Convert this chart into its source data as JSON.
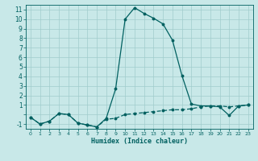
{
  "xlabel": "Humidex (Indice chaleur)",
  "xlim": [
    -0.5,
    23.5
  ],
  "ylim": [
    -1.5,
    11.5
  ],
  "xticks": [
    0,
    1,
    2,
    3,
    4,
    5,
    6,
    7,
    8,
    9,
    10,
    11,
    12,
    13,
    14,
    15,
    16,
    17,
    18,
    19,
    20,
    21,
    22,
    23
  ],
  "yticks": [
    -1,
    0,
    1,
    2,
    3,
    4,
    5,
    6,
    7,
    8,
    9,
    10,
    11
  ],
  "ytick_labels": [
    "-1",
    "",
    "1",
    "2",
    "3",
    "4",
    "5",
    "6",
    "7",
    "8",
    "9",
    "10",
    "11"
  ],
  "background_color": "#c8e8e8",
  "grid_color": "#a0cccc",
  "line_color": "#006060",
  "line1_x": [
    0,
    1,
    2,
    3,
    4,
    5,
    6,
    7,
    8,
    9,
    10,
    11,
    12,
    13,
    14,
    15,
    16,
    17,
    18,
    19,
    20,
    21,
    22,
    23
  ],
  "line1_y": [
    -0.3,
    -1.0,
    -0.7,
    0.1,
    0.0,
    -0.9,
    -1.1,
    -1.3,
    -0.4,
    2.7,
    10.0,
    11.2,
    10.6,
    10.1,
    9.5,
    7.8,
    4.1,
    1.1,
    0.9,
    0.9,
    0.8,
    -0.1,
    0.9,
    1.0
  ],
  "line2_x": [
    0,
    1,
    2,
    3,
    4,
    5,
    6,
    7,
    8,
    9,
    10,
    11,
    12,
    13,
    14,
    15,
    16,
    17,
    18,
    19,
    20,
    21,
    22,
    23
  ],
  "line2_y": [
    -0.3,
    -1.0,
    -0.7,
    0.1,
    0.0,
    -0.9,
    -1.1,
    -1.3,
    -0.5,
    -0.4,
    0.0,
    0.1,
    0.2,
    0.3,
    0.4,
    0.5,
    0.5,
    0.6,
    0.8,
    0.9,
    0.9,
    0.8,
    0.9,
    1.0
  ]
}
